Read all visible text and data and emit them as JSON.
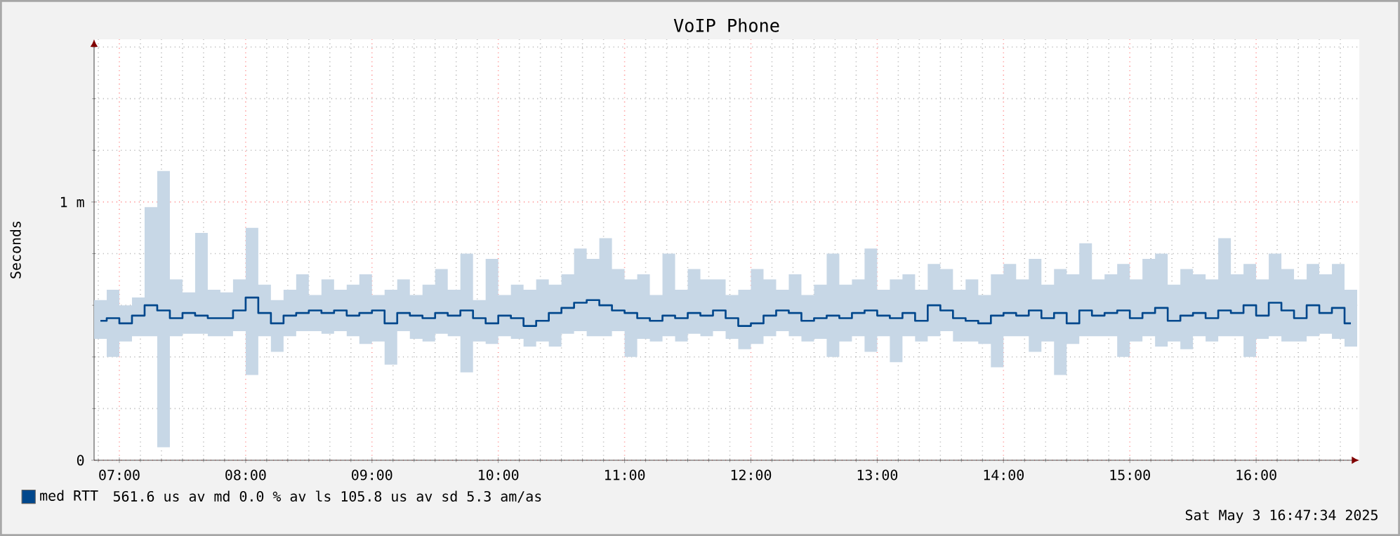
{
  "chart_data": {
    "type": "step",
    "title": "VoIP Phone",
    "ylabel": "Seconds",
    "xlim": [
      "2025-05-03T06:48",
      "2025-05-03T16:49"
    ],
    "xticks": [
      {
        "value": "2025-05-03T06:50",
        "label": null
      },
      {
        "value": "2025-05-03T07:00",
        "label": "07:00"
      },
      {
        "value": "2025-05-03T07:10",
        "label": null
      },
      {
        "value": "2025-05-03T07:20",
        "label": null
      },
      {
        "value": "2025-05-03T07:30",
        "label": null
      },
      {
        "value": "2025-05-03T07:40",
        "label": null
      },
      {
        "value": "2025-05-03T07:50",
        "label": null
      },
      {
        "value": "2025-05-03T08:00",
        "label": "08:00"
      },
      {
        "value": "2025-05-03T08:10",
        "label": null
      },
      {
        "value": "2025-05-03T08:20",
        "label": null
      },
      {
        "value": "2025-05-03T08:30",
        "label": null
      },
      {
        "value": "2025-05-03T08:40",
        "label": null
      },
      {
        "value": "2025-05-03T08:50",
        "label": null
      },
      {
        "value": "2025-05-03T09:00",
        "label": "09:00"
      },
      {
        "value": "2025-05-03T09:10",
        "label": null
      },
      {
        "value": "2025-05-03T09:20",
        "label": null
      },
      {
        "value": "2025-05-03T09:30",
        "label": null
      },
      {
        "value": "2025-05-03T09:40",
        "label": null
      },
      {
        "value": "2025-05-03T09:50",
        "label": null
      },
      {
        "value": "2025-05-03T10:00",
        "label": "10:00"
      },
      {
        "value": "2025-05-03T10:10",
        "label": null
      },
      {
        "value": "2025-05-03T10:20",
        "label": null
      },
      {
        "value": "2025-05-03T10:30",
        "label": null
      },
      {
        "value": "2025-05-03T10:40",
        "label": null
      },
      {
        "value": "2025-05-03T10:50",
        "label": null
      },
      {
        "value": "2025-05-03T11:00",
        "label": "11:00"
      },
      {
        "value": "2025-05-03T11:10",
        "label": null
      },
      {
        "value": "2025-05-03T11:20",
        "label": null
      },
      {
        "value": "2025-05-03T11:30",
        "label": null
      },
      {
        "value": "2025-05-03T11:40",
        "label": null
      },
      {
        "value": "2025-05-03T11:50",
        "label": null
      },
      {
        "value": "2025-05-03T12:00",
        "label": "12:00"
      },
      {
        "value": "2025-05-03T12:10",
        "label": null
      },
      {
        "value": "2025-05-03T12:20",
        "label": null
      },
      {
        "value": "2025-05-03T12:30",
        "label": null
      },
      {
        "value": "2025-05-03T12:40",
        "label": null
      },
      {
        "value": "2025-05-03T12:50",
        "label": null
      },
      {
        "value": "2025-05-03T13:00",
        "label": "13:00"
      },
      {
        "value": "2025-05-03T13:10",
        "label": null
      },
      {
        "value": "2025-05-03T13:20",
        "label": null
      },
      {
        "value": "2025-05-03T13:30",
        "label": null
      },
      {
        "value": "2025-05-03T13:40",
        "label": null
      },
      {
        "value": "2025-05-03T13:50",
        "label": null
      },
      {
        "value": "2025-05-03T14:00",
        "label": "14:00"
      },
      {
        "value": "2025-05-03T14:10",
        "label": null
      },
      {
        "value": "2025-05-03T14:20",
        "label": null
      },
      {
        "value": "2025-05-03T14:30",
        "label": null
      },
      {
        "value": "2025-05-03T14:40",
        "label": null
      },
      {
        "value": "2025-05-03T14:50",
        "label": null
      },
      {
        "value": "2025-05-03T15:00",
        "label": "15:00"
      },
      {
        "value": "2025-05-03T15:10",
        "label": null
      },
      {
        "value": "2025-05-03T15:20",
        "label": null
      },
      {
        "value": "2025-05-03T15:30",
        "label": null
      },
      {
        "value": "2025-05-03T15:40",
        "label": null
      },
      {
        "value": "2025-05-03T15:50",
        "label": null
      },
      {
        "value": "2025-05-03T16:00",
        "label": "16:00"
      },
      {
        "value": "2025-05-03T16:10",
        "label": null
      },
      {
        "value": "2025-05-03T16:20",
        "label": null
      },
      {
        "value": "2025-05-03T16:30",
        "label": null
      },
      {
        "value": "2025-05-03T16:40",
        "label": null
      }
    ],
    "ylim": [
      0,
      1.63
    ],
    "yticks": [
      {
        "value": 0,
        "label": "0"
      },
      {
        "value": 0.2,
        "label": null
      },
      {
        "value": 0.4,
        "label": null
      },
      {
        "value": 0.6,
        "label": null
      },
      {
        "value": 0.8,
        "label": null
      },
      {
        "value": 1,
        "label": "1 m"
      },
      {
        "value": 1.2,
        "label": null
      },
      {
        "value": 1.4,
        "label": null
      },
      {
        "value": 1.6,
        "label": null
      }
    ],
    "grid": true,
    "legend": "bottom",
    "x": [
      "2025-05-03T06:51",
      "2025-05-03T06:57",
      "2025-05-03T07:03",
      "2025-05-03T07:09",
      "2025-05-03T07:15",
      "2025-05-03T07:21",
      "2025-05-03T07:27",
      "2025-05-03T07:33",
      "2025-05-03T07:39",
      "2025-05-03T07:45",
      "2025-05-03T07:51",
      "2025-05-03T07:57",
      "2025-05-03T08:03",
      "2025-05-03T08:09",
      "2025-05-03T08:15",
      "2025-05-03T08:21",
      "2025-05-03T08:27",
      "2025-05-03T08:33",
      "2025-05-03T08:39",
      "2025-05-03T08:45",
      "2025-05-03T08:51",
      "2025-05-03T08:57",
      "2025-05-03T09:03",
      "2025-05-03T09:09",
      "2025-05-03T09:15",
      "2025-05-03T09:21",
      "2025-05-03T09:27",
      "2025-05-03T09:33",
      "2025-05-03T09:39",
      "2025-05-03T09:45",
      "2025-05-03T09:51",
      "2025-05-03T09:57",
      "2025-05-03T10:03",
      "2025-05-03T10:09",
      "2025-05-03T10:15",
      "2025-05-03T10:21",
      "2025-05-03T10:27",
      "2025-05-03T10:33",
      "2025-05-03T10:39",
      "2025-05-03T10:45",
      "2025-05-03T10:51",
      "2025-05-03T10:57",
      "2025-05-03T11:03",
      "2025-05-03T11:09",
      "2025-05-03T11:15",
      "2025-05-03T11:21",
      "2025-05-03T11:27",
      "2025-05-03T11:33",
      "2025-05-03T11:39",
      "2025-05-03T11:45",
      "2025-05-03T11:51",
      "2025-05-03T11:57",
      "2025-05-03T12:03",
      "2025-05-03T12:09",
      "2025-05-03T12:15",
      "2025-05-03T12:21",
      "2025-05-03T12:27",
      "2025-05-03T12:33",
      "2025-05-03T12:39",
      "2025-05-03T12:45",
      "2025-05-03T12:51",
      "2025-05-03T12:57",
      "2025-05-03T13:03",
      "2025-05-03T13:09",
      "2025-05-03T13:15",
      "2025-05-03T13:21",
      "2025-05-03T13:27",
      "2025-05-03T13:33",
      "2025-05-03T13:39",
      "2025-05-03T13:45",
      "2025-05-03T13:51",
      "2025-05-03T13:57",
      "2025-05-03T14:03",
      "2025-05-03T14:09",
      "2025-05-03T14:15",
      "2025-05-03T14:21",
      "2025-05-03T14:27",
      "2025-05-03T14:33",
      "2025-05-03T14:39",
      "2025-05-03T14:45",
      "2025-05-03T14:51",
      "2025-05-03T14:57",
      "2025-05-03T15:03",
      "2025-05-03T15:09",
      "2025-05-03T15:15",
      "2025-05-03T15:21",
      "2025-05-03T15:27",
      "2025-05-03T15:33",
      "2025-05-03T15:39",
      "2025-05-03T15:45",
      "2025-05-03T15:51",
      "2025-05-03T15:57",
      "2025-05-03T16:03",
      "2025-05-03T16:09",
      "2025-05-03T16:15",
      "2025-05-03T16:21",
      "2025-05-03T16:27",
      "2025-05-03T16:33",
      "2025-05-03T16:39",
      "2025-05-03T16:45"
    ],
    "series": [
      {
        "name": "med RTT",
        "color": "#00478c",
        "values": [
          0.54,
          0.55,
          0.53,
          0.56,
          0.6,
          0.58,
          0.55,
          0.57,
          0.56,
          0.55,
          0.55,
          0.58,
          0.63,
          0.57,
          0.53,
          0.56,
          0.57,
          0.58,
          0.57,
          0.58,
          0.56,
          0.57,
          0.58,
          0.53,
          0.57,
          0.56,
          0.55,
          0.57,
          0.56,
          0.58,
          0.55,
          0.53,
          0.56,
          0.55,
          0.52,
          0.54,
          0.57,
          0.59,
          0.61,
          0.62,
          0.6,
          0.58,
          0.57,
          0.55,
          0.54,
          0.56,
          0.55,
          0.57,
          0.56,
          0.58,
          0.55,
          0.52,
          0.53,
          0.56,
          0.58,
          0.57,
          0.54,
          0.55,
          0.56,
          0.55,
          0.57,
          0.58,
          0.56,
          0.55,
          0.57,
          0.54,
          0.6,
          0.58,
          0.55,
          0.54,
          0.53,
          0.56,
          0.57,
          0.56,
          0.58,
          0.55,
          0.57,
          0.53,
          0.58,
          0.56,
          0.57,
          0.58,
          0.55,
          0.57,
          0.59,
          0.54,
          0.56,
          0.57,
          0.55,
          0.58,
          0.57,
          0.6,
          0.56,
          0.61,
          0.58,
          0.55,
          0.6,
          0.57,
          0.59,
          0.53
        ],
        "lower": [
          0.47,
          0.4,
          0.46,
          0.48,
          0.48,
          0.05,
          0.48,
          0.49,
          0.49,
          0.48,
          0.48,
          0.5,
          0.33,
          0.48,
          0.42,
          0.48,
          0.5,
          0.5,
          0.49,
          0.5,
          0.48,
          0.45,
          0.46,
          0.37,
          0.5,
          0.47,
          0.46,
          0.49,
          0.48,
          0.34,
          0.46,
          0.45,
          0.48,
          0.47,
          0.44,
          0.46,
          0.44,
          0.49,
          0.5,
          0.48,
          0.48,
          0.5,
          0.4,
          0.47,
          0.46,
          0.48,
          0.46,
          0.49,
          0.48,
          0.5,
          0.47,
          0.43,
          0.45,
          0.48,
          0.5,
          0.48,
          0.46,
          0.47,
          0.4,
          0.46,
          0.48,
          0.42,
          0.48,
          0.38,
          0.48,
          0.46,
          0.48,
          0.5,
          0.46,
          0.46,
          0.45,
          0.36,
          0.48,
          0.48,
          0.42,
          0.46,
          0.33,
          0.45,
          0.48,
          0.48,
          0.48,
          0.4,
          0.46,
          0.48,
          0.44,
          0.46,
          0.43,
          0.48,
          0.46,
          0.48,
          0.48,
          0.4,
          0.47,
          0.48,
          0.46,
          0.46,
          0.48,
          0.49,
          0.47,
          0.44
        ],
        "upper": [
          0.62,
          0.66,
          0.6,
          0.63,
          0.98,
          1.12,
          0.7,
          0.65,
          0.88,
          0.66,
          0.65,
          0.7,
          0.9,
          0.68,
          0.62,
          0.66,
          0.72,
          0.64,
          0.7,
          0.66,
          0.68,
          0.72,
          0.64,
          0.66,
          0.7,
          0.64,
          0.68,
          0.74,
          0.66,
          0.8,
          0.62,
          0.78,
          0.64,
          0.68,
          0.66,
          0.7,
          0.68,
          0.72,
          0.82,
          0.78,
          0.86,
          0.74,
          0.7,
          0.72,
          0.64,
          0.8,
          0.66,
          0.74,
          0.7,
          0.7,
          0.64,
          0.66,
          0.74,
          0.7,
          0.66,
          0.72,
          0.64,
          0.68,
          0.8,
          0.68,
          0.7,
          0.82,
          0.66,
          0.7,
          0.72,
          0.66,
          0.76,
          0.74,
          0.66,
          0.7,
          0.64,
          0.72,
          0.76,
          0.7,
          0.78,
          0.68,
          0.74,
          0.72,
          0.84,
          0.7,
          0.72,
          0.76,
          0.7,
          0.78,
          0.8,
          0.68,
          0.74,
          0.72,
          0.7,
          0.86,
          0.72,
          0.76,
          0.7,
          0.8,
          0.74,
          0.7,
          0.76,
          0.72,
          0.76,
          0.66
        ]
      }
    ],
    "annotations": [
      "561.6 us av md      0.0 % av ls   105.8 us av sd     5.3   am/as",
      "Sat May  3 16:47:34 2025"
    ]
  }
}
